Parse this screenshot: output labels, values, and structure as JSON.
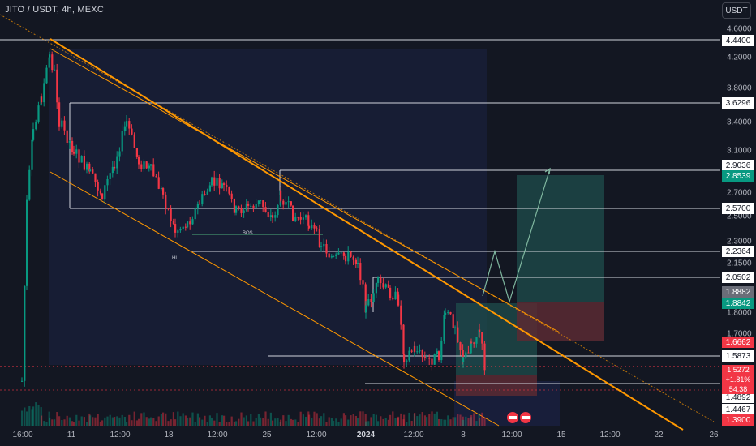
{
  "header": {
    "symbol_title": "JITO / USDT, 4h, MEXC"
  },
  "currency_button": {
    "label": "USDT"
  },
  "price_axis": {
    "labels": [
      "4.6000",
      "4.2000",
      "3.8000",
      "3.4000",
      "3.1000",
      "2.7000",
      "2.5000",
      "2.3000",
      "2.1500",
      "1.8000",
      "1.7000"
    ]
  },
  "level_tags": [
    {
      "value": "4.4400",
      "style": "white"
    },
    {
      "value": "3.6296",
      "style": "white"
    },
    {
      "value": "2.9036",
      "style": "white"
    },
    {
      "value": "2.8539",
      "style": "green"
    },
    {
      "value": "2.5700",
      "style": "white"
    },
    {
      "value": "2.2364",
      "style": "white"
    },
    {
      "value": "2.0502",
      "style": "white"
    },
    {
      "value": "1.8882",
      "style": "gray"
    },
    {
      "value": "1.8842",
      "style": "green"
    },
    {
      "value": "1.6662",
      "style": "red"
    },
    {
      "value": "1.5873",
      "style": "white"
    },
    {
      "value": "1.4892",
      "style": "white"
    },
    {
      "value": "1.4467",
      "style": "white"
    },
    {
      "value": "1.3900",
      "style": "red"
    }
  ],
  "last_price": {
    "price": "1.5272",
    "change": "+1.81%",
    "countdown": "54:38"
  },
  "time_axis": {
    "labels": [
      {
        "text": "16:00",
        "bold": false
      },
      {
        "text": "11",
        "bold": false
      },
      {
        "text": "12:00",
        "bold": false
      },
      {
        "text": "18",
        "bold": false
      },
      {
        "text": "12:00",
        "bold": false
      },
      {
        "text": "25",
        "bold": false
      },
      {
        "text": "12:00",
        "bold": false
      },
      {
        "text": "2024",
        "bold": true
      },
      {
        "text": "12:00",
        "bold": false
      },
      {
        "text": "8",
        "bold": false
      },
      {
        "text": "12:00",
        "bold": false
      },
      {
        "text": "15",
        "bold": false
      },
      {
        "text": "12:00",
        "bold": false
      },
      {
        "text": "22",
        "bold": false
      },
      {
        "text": "26",
        "bold": false
      }
    ]
  },
  "annotations": {
    "bos": "BOS",
    "hl": "HL"
  },
  "colors": {
    "background": "#131722",
    "up": "#089981",
    "down": "#f23645",
    "channel": "#ff9800",
    "path": "#4caf7a"
  },
  "chart_data": {
    "type": "candlestick",
    "symbol": "JITO / USDT",
    "interval": "4h",
    "exchange": "MEXC",
    "horizontal_levels": [
      4.44,
      3.6296,
      2.9036,
      2.57,
      2.2364,
      2.0502,
      1.5873,
      1.4892
    ],
    "trade_setup": {
      "entry": 1.8842,
      "target": 2.8539,
      "stop": 1.6662
    },
    "last_price": 1.5272,
    "change_pct": "+1.81%"
  }
}
